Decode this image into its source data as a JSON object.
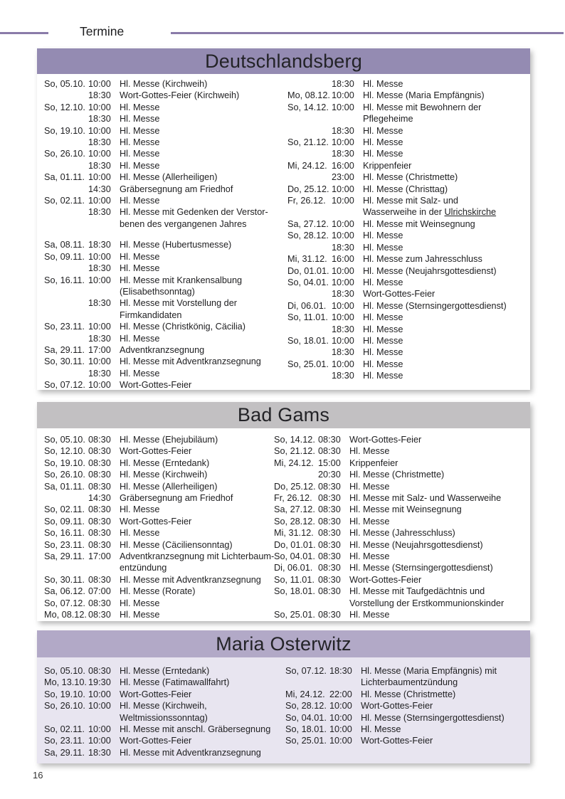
{
  "page": {
    "heading": "Termine",
    "page_number": "16"
  },
  "colors": {
    "rule": "#8a7ba9",
    "text": "#1e1e20",
    "deutschlandsberg_header": "#948bb2",
    "badgams_header": "#c2c0c2",
    "osterwitz_header": "#b2a9c7",
    "osterwitz_body": "#e8e5f0",
    "white_body": "#ffffff"
  },
  "sections": [
    {
      "title": "Deutschlandsberg",
      "colors": {
        "header": "#948bb2",
        "body": "#ffffff"
      },
      "columns": [
        [
          {
            "date": "So, 05.10.",
            "time": "10:00",
            "desc": [
              "Hl. Messe (Kirchweih)"
            ]
          },
          {
            "date": "",
            "time": "18:30",
            "desc": [
              "Wort-Gottes-Feier (Kirchweih)"
            ]
          },
          {
            "date": "So, 12.10.",
            "time": "10:00",
            "desc": [
              "Hl. Messe"
            ]
          },
          {
            "date": "",
            "time": "18:30",
            "desc": [
              "Hl. Messe"
            ]
          },
          {
            "date": "So, 19.10.",
            "time": "10:00",
            "desc": [
              "Hl. Messe"
            ]
          },
          {
            "date": "",
            "time": "18:30",
            "desc": [
              "Hl. Messe"
            ]
          },
          {
            "date": "So, 26.10.",
            "time": "10:00",
            "desc": [
              "Hl. Messe"
            ]
          },
          {
            "date": "",
            "time": "18:30",
            "desc": [
              "Hl. Messe"
            ]
          },
          {
            "date": "Sa, 01.11.",
            "time": "10:00",
            "desc": [
              "Hl. Messe (Allerheiligen)"
            ]
          },
          {
            "date": "",
            "time": "14:30",
            "desc": [
              "Gräbersegnung am Friedhof"
            ]
          },
          {
            "date": "So, 02.11.",
            "time": "10:00",
            "desc": [
              "Hl. Messe"
            ]
          },
          {
            "date": "",
            "time": "18:30",
            "desc": [
              "Hl. Messe mit Gedenken der Verstor-",
              "benen des vergangenen Jahres"
            ]
          },
          {
            "gap": true
          },
          {
            "date": "Sa, 08.11.",
            "time": "18:30",
            "desc": [
              "Hl. Messe (Hubertusmesse)"
            ]
          },
          {
            "date": "So, 09.11.",
            "time": "10:00",
            "desc": [
              "Hl. Messe"
            ]
          },
          {
            "date": "",
            "time": "18:30",
            "desc": [
              "Hl. Messe"
            ]
          },
          {
            "date": "So, 16.11.",
            "time": "10:00",
            "desc": [
              "Hl. Messe mit Krankensalbung",
              "(Elisabethsonntag)"
            ]
          },
          {
            "date": "",
            "time": "18:30",
            "desc": [
              "Hl. Messe mit Vorstellung der",
              "Firmkandidaten"
            ]
          },
          {
            "date": "So, 23.11.",
            "time": "10:00",
            "desc": [
              "Hl. Messe (Christkönig, Cäcilia)"
            ]
          },
          {
            "date": "",
            "time": "18:30",
            "desc": [
              "Hl. Messe"
            ]
          },
          {
            "date": "Sa, 29.11.",
            "time": "17:00",
            "desc": [
              "Adventkranzsegnung"
            ]
          },
          {
            "date": "So, 30.11.",
            "time": "10:00",
            "desc": [
              "Hl. Messe mit Adventkranzsegnung"
            ]
          },
          {
            "date": "",
            "time": "18:30",
            "desc": [
              "Hl. Messe"
            ]
          },
          {
            "date": "So, 07.12.",
            "time": "10:00",
            "desc": [
              "Wort-Gottes-Feier"
            ]
          }
        ],
        [
          {
            "date": "",
            "time": "18:30",
            "desc": [
              "Hl. Messe"
            ]
          },
          {
            "date": "Mo, 08.12.",
            "time": "10:00",
            "desc": [
              "Hl. Messe (Maria Empfängnis)"
            ]
          },
          {
            "date": "So, 14.12.",
            "time": "10:00",
            "desc": [
              "Hl. Messe mit Bewohnern der",
              "Pflegeheime"
            ]
          },
          {
            "date": "",
            "time": "18:30",
            "desc": [
              "Hl. Messe"
            ]
          },
          {
            "date": "So, 21.12.",
            "time": "10:00",
            "desc": [
              "Hl. Messe"
            ]
          },
          {
            "date": "",
            "time": "18:30",
            "desc": [
              "Hl. Messe"
            ]
          },
          {
            "date": "Mi, 24.12.",
            "time": "16:00",
            "desc": [
              "Krippenfeier"
            ]
          },
          {
            "date": "",
            "time": "23:00",
            "desc": [
              "Hl. Messe (Christmette)"
            ]
          },
          {
            "date": "Do, 25.12.",
            "time": "10:00",
            "desc": [
              "Hl. Messe (Christtag)"
            ]
          },
          {
            "date": "Fr, 26.12.",
            "time": "10:00",
            "desc": [
              "Hl. Messe mit Salz- und",
              [
                "Wasserweihe in der ",
                {
                  "u": "Ulrichskirche"
                }
              ]
            ]
          },
          {
            "date": "Sa, 27.12.",
            "time": "10:00",
            "desc": [
              "Hl. Messe mit Weinsegnung"
            ]
          },
          {
            "date": "So, 28.12.",
            "time": "10:00",
            "desc": [
              "Hl. Messe"
            ]
          },
          {
            "date": "",
            "time": "18:30",
            "desc": [
              "Hl. Messe"
            ]
          },
          {
            "date": "Mi, 31.12.",
            "time": "16:00",
            "desc": [
              "Hl. Messe zum Jahresschluss"
            ]
          },
          {
            "date": "Do, 01.01.",
            "time": "10:00",
            "desc": [
              "Hl. Messe (Neujahrsgottesdienst)"
            ]
          },
          {
            "date": "So, 04.01.",
            "time": "10:00",
            "desc": [
              "Hl. Messe"
            ]
          },
          {
            "date": "",
            "time": "18:30",
            "desc": [
              "Wort-Gottes-Feier"
            ]
          },
          {
            "date": "Di, 06.01.",
            "time": "10:00",
            "desc": [
              "Hl. Messe (Sternsingergottesdienst)"
            ]
          },
          {
            "date": "So, 11.01.",
            "time": "10:00",
            "desc": [
              "Hl. Messe"
            ]
          },
          {
            "date": "",
            "time": "18:30",
            "desc": [
              "Hl. Messe"
            ]
          },
          {
            "date": "So, 18.01.",
            "time": "10:00",
            "desc": [
              "Hl. Messe"
            ]
          },
          {
            "date": "",
            "time": "18:30",
            "desc": [
              "Hl. Messe"
            ]
          },
          {
            "date": "So, 25.01.",
            "time": "10:00",
            "desc": [
              "Hl. Messe"
            ]
          },
          {
            "date": "",
            "time": "18:30",
            "desc": [
              "Hl. Messe"
            ]
          }
        ]
      ]
    },
    {
      "title": "Bad Gams",
      "colors": {
        "header": "#c2c0c2",
        "body": "#ffffff"
      },
      "columns": [
        [
          {
            "date": "So, 05.10.",
            "time": "08:30",
            "desc": [
              "Hl. Messe (Ehejubiläum)"
            ]
          },
          {
            "date": "So, 12.10.",
            "time": "08:30",
            "desc": [
              "Wort-Gottes-Feier"
            ]
          },
          {
            "date": "So, 19.10.",
            "time": "08:30",
            "desc": [
              "Hl. Messe (Erntedank)"
            ]
          },
          {
            "date": "So, 26.10.",
            "time": "08:30",
            "desc": [
              "Hl. Messe (Kirchweih)"
            ]
          },
          {
            "date": "Sa, 01.11.",
            "time": "08:30",
            "desc": [
              "Hl. Messe (Allerheiligen)"
            ]
          },
          {
            "date": "",
            "time": "14:30",
            "desc": [
              "Gräbersegnung am Friedhof"
            ]
          },
          {
            "date": "So, 02.11.",
            "time": "08:30",
            "desc": [
              "Hl. Messe"
            ]
          },
          {
            "date": "So, 09.11.",
            "time": "08:30",
            "desc": [
              "Wort-Gottes-Feier"
            ]
          },
          {
            "date": "So, 16.11.",
            "time": "08:30",
            "desc": [
              "Hl. Messe"
            ]
          },
          {
            "date": "So, 23.11.",
            "time": "08:30",
            "desc": [
              "Hl. Messe (Cäciliensonntag)"
            ]
          },
          {
            "date": "Sa, 29.11.",
            "time": "17:00",
            "desc": [
              "Adventkranzsegnung mit Lichterbaum-",
              "entzündung"
            ]
          },
          {
            "date": "So, 30.11.",
            "time": "08:30",
            "desc": [
              "Hl. Messe mit Adventkranzsegnung"
            ]
          },
          {
            "date": "Sa, 06.12.",
            "time": "07:00",
            "desc": [
              "Hl. Messe (Rorate)"
            ]
          },
          {
            "date": "So, 07.12.",
            "time": "08:30",
            "desc": [
              "Hl. Messe"
            ]
          },
          {
            "date": "Mo, 08.12.",
            "time": "08:30",
            "desc": [
              "Hl. Messe"
            ]
          }
        ],
        [
          {
            "date": "So, 14.12.",
            "time": "08:30",
            "desc": [
              "Wort-Gottes-Feier"
            ]
          },
          {
            "date": "So, 21.12.",
            "time": "08:30",
            "desc": [
              "Hl. Messe"
            ]
          },
          {
            "date": "Mi, 24.12.",
            "time": "15:00",
            "desc": [
              "Krippenfeier"
            ]
          },
          {
            "date": "",
            "time": "20:30",
            "desc": [
              "Hl. Messe (Christmette)"
            ]
          },
          {
            "date": "Do, 25.12.",
            "time": "08:30",
            "desc": [
              "Hl. Messe"
            ]
          },
          {
            "date": "Fr, 26.12.",
            "time": "08:30",
            "desc": [
              "Hl. Messe mit Salz- und Wasserweihe"
            ]
          },
          {
            "date": "Sa, 27.12.",
            "time": "08:30",
            "desc": [
              "Hl. Messe mit Weinsegnung"
            ]
          },
          {
            "date": "So, 28.12.",
            "time": "08:30",
            "desc": [
              "Hl. Messe"
            ]
          },
          {
            "date": "Mi, 31.12.",
            "time": "08:30",
            "desc": [
              "Hl. Messe (Jahresschluss)"
            ]
          },
          {
            "date": "Do, 01.01.",
            "time": "08:30",
            "desc": [
              "Hl. Messe (Neujahrsgottesdienst)"
            ]
          },
          {
            "date": "So, 04.01.",
            "time": "08:30",
            "desc": [
              "Hl. Messe"
            ]
          },
          {
            "date": "Di, 06.01.",
            "time": "08:30",
            "desc": [
              "Hl. Messe (Sternsingergottesdienst)"
            ]
          },
          {
            "date": "So, 11.01.",
            "time": "08:30",
            "desc": [
              "Wort-Gottes-Feier"
            ]
          },
          {
            "date": "So, 18.01.",
            "time": "08:30",
            "desc": [
              "Hl. Messe mit Taufgedächtnis und",
              "Vorstellung der Erstkommunionskinder"
            ]
          },
          {
            "date": "So, 25.01.",
            "time": "08:30",
            "desc": [
              "Hl. Messe"
            ]
          }
        ]
      ]
    },
    {
      "title": "Maria Osterwitz",
      "colors": {
        "header": "#b2a9c7",
        "body": "#e8e5f0"
      },
      "columns": [
        [
          {
            "date": "So, 05.10.",
            "time": "08:30",
            "desc": [
              "Hl. Messe (Erntedank)"
            ]
          },
          {
            "date": "Mo, 13.10.",
            "time": "19:30",
            "desc": [
              "Hl. Messe (Fatimawallfahrt)"
            ]
          },
          {
            "date": "So, 19.10.",
            "time": "10:00",
            "desc": [
              "Wort-Gottes-Feier"
            ]
          },
          {
            "date": "So, 26.10.",
            "time": "10:00",
            "desc": [
              "Hl. Messe (Kirchweih,",
              "Weltmissionssonntag)"
            ]
          },
          {
            "date": "So, 02.11.",
            "time": "10:00",
            "desc": [
              "Hl. Messe mit anschl. Gräbersegnung"
            ]
          },
          {
            "date": "So, 23.11.",
            "time": "10:00",
            "desc": [
              "Wort-Gottes-Feier"
            ]
          },
          {
            "date": "Sa, 29.11.",
            "time": "18:30",
            "desc": [
              "Hl. Messe mit Adventkranzsegnung"
            ]
          }
        ],
        [
          {
            "date": "So, 07.12.",
            "time": "18:30",
            "desc": [
              "Hl. Messe (Maria Empfängnis) mit",
              "Lichterbaumentzündung"
            ]
          },
          {
            "date": "Mi, 24.12.",
            "time": "22:00",
            "desc": [
              "Hl. Messe (Christmette)"
            ]
          },
          {
            "date": "So, 28.12.",
            "time": "10:00",
            "desc": [
              "Wort-Gottes-Feier"
            ]
          },
          {
            "date": "So, 04.01.",
            "time": "10:00",
            "desc": [
              "Hl. Messe (Sternsingergottesdienst)"
            ]
          },
          {
            "date": "So, 18.01.",
            "time": "10:00",
            "desc": [
              "Hl. Messe"
            ]
          },
          {
            "date": "So, 25.01.",
            "time": "10:00",
            "desc": [
              "Wort-Gottes-Feier"
            ]
          }
        ]
      ]
    }
  ]
}
